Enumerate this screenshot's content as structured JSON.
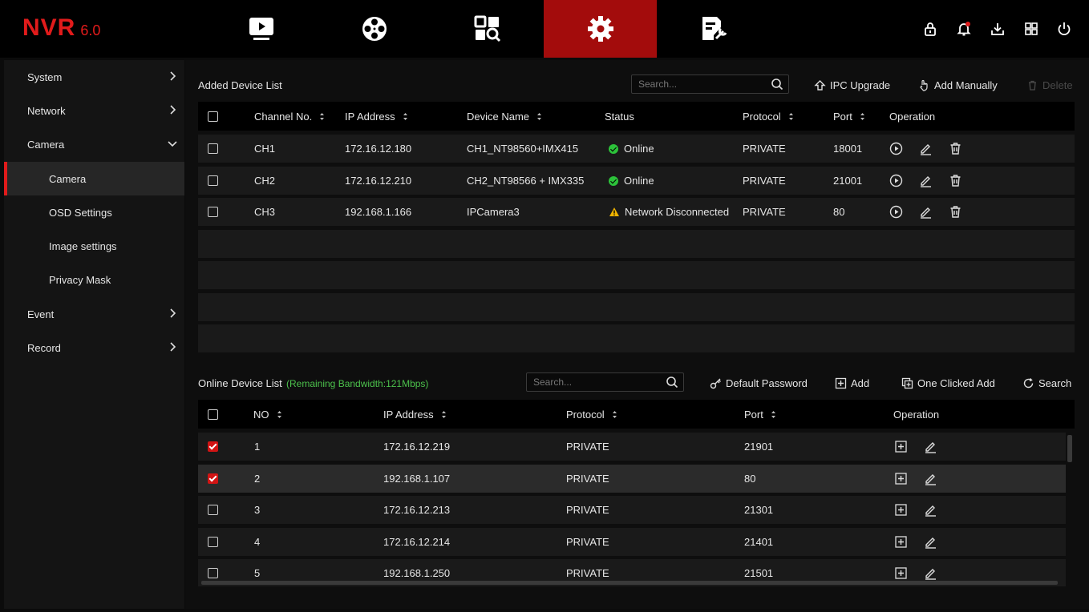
{
  "brand": {
    "name": "NVR",
    "version": "6.0",
    "color": "#e11b1b"
  },
  "top_nav": {
    "tabs": [
      {
        "icon": "playback-icon",
        "active": false
      },
      {
        "icon": "film-reel-icon",
        "active": false
      },
      {
        "icon": "search-analysis-icon",
        "active": false
      },
      {
        "icon": "gear-icon",
        "active": true
      },
      {
        "icon": "maintenance-icon",
        "active": false
      }
    ],
    "right_icons": [
      "lock-icon",
      "notification-bell-icon",
      "download-icon",
      "layout-grid-icon",
      "power-icon"
    ]
  },
  "sidebar": {
    "items": [
      {
        "label": "System",
        "level": "top",
        "expanded": false
      },
      {
        "label": "Network",
        "level": "top",
        "expanded": false
      },
      {
        "label": "Camera",
        "level": "top",
        "expanded": true
      },
      {
        "label": "Camera",
        "level": "sub",
        "selected": true
      },
      {
        "label": "OSD Settings",
        "level": "sub"
      },
      {
        "label": "Image settings",
        "level": "sub"
      },
      {
        "label": "Privacy Mask",
        "level": "sub"
      },
      {
        "label": "Event",
        "level": "top",
        "expanded": false
      },
      {
        "label": "Record",
        "level": "top",
        "expanded": false
      }
    ]
  },
  "added": {
    "title": "Added Device List",
    "search_placeholder": "Search...",
    "buttons": {
      "ipc_upgrade": "IPC Upgrade",
      "add_manually": "Add Manually",
      "delete": "Delete"
    },
    "columns": [
      "Channel No.",
      "IP Address",
      "Device Name",
      "Status",
      "Protocol",
      "Port",
      "Operation"
    ],
    "rows": [
      {
        "channel": "CH1",
        "ip": "172.16.12.180",
        "name": "CH1_NT98560+IMX415",
        "status": "Online",
        "status_type": "ok",
        "protocol": "PRIVATE",
        "port": "18001"
      },
      {
        "channel": "CH2",
        "ip": "172.16.12.210",
        "name": "CH2_NT98566 + IMX335",
        "status": "Online",
        "status_type": "ok",
        "protocol": "PRIVATE",
        "port": "21001"
      },
      {
        "channel": "CH3",
        "ip": "192.168.1.166",
        "name": "IPCamera3",
        "status": "Network Disconnected",
        "status_type": "warn",
        "protocol": "PRIVATE",
        "port": "80"
      }
    ]
  },
  "online": {
    "title": "Online Device List",
    "bandwidth": "(Remaining Bandwidth:121Mbps)",
    "search_placeholder": "Search...",
    "buttons": {
      "default_password": "Default Password",
      "add": "Add",
      "one_clicked_add": "One Clicked Add",
      "search": "Search"
    },
    "columns": [
      "NO",
      "IP Address",
      "Protocol",
      "Port",
      "Operation"
    ],
    "rows": [
      {
        "no": "1",
        "ip": "172.16.12.219",
        "protocol": "PRIVATE",
        "port": "21901",
        "checked": true
      },
      {
        "no": "2",
        "ip": "192.168.1.107",
        "protocol": "PRIVATE",
        "port": "80",
        "checked": true,
        "highlighted": true
      },
      {
        "no": "3",
        "ip": "172.16.12.213",
        "protocol": "PRIVATE",
        "port": "21301",
        "checked": false
      },
      {
        "no": "4",
        "ip": "172.16.12.214",
        "protocol": "PRIVATE",
        "port": "21401",
        "checked": false
      },
      {
        "no": "5",
        "ip": "192.168.1.250",
        "protocol": "PRIVATE",
        "port": "21501",
        "checked": false
      }
    ]
  },
  "colors": {
    "accent": "#d11414",
    "online": "#2cc23a",
    "warning": "#f0b400",
    "bandwidth": "#4cc24c"
  }
}
